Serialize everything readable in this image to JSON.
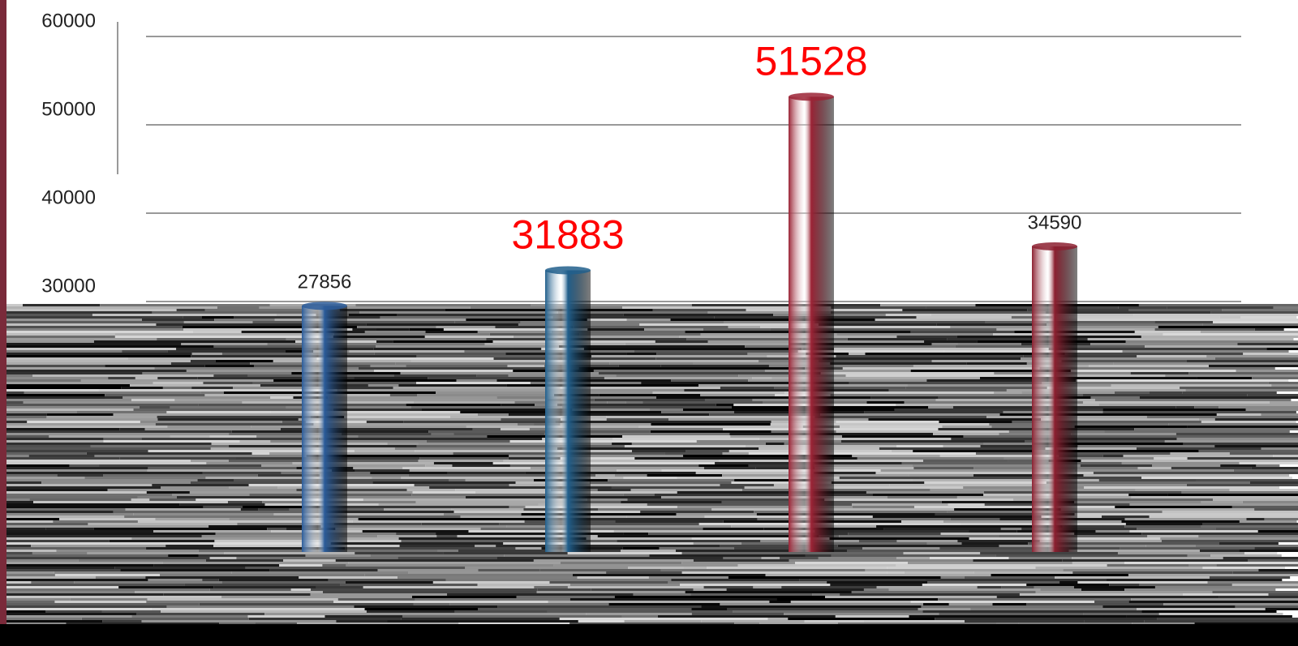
{
  "chart_data": {
    "type": "bar",
    "categories": [
      null,
      null,
      null,
      null
    ],
    "values": [
      27856,
      31883,
      51528,
      34590
    ],
    "colors": [
      "#2b5c9a",
      "#215f8c",
      "#9b2335",
      "#8c2030"
    ],
    "label_colors": [
      "#222222",
      "#ff0000",
      "#ff0000",
      "#222222"
    ],
    "ylim": [
      0,
      60000
    ],
    "yticks": [
      30000,
      40000,
      50000,
      60000
    ],
    "grid": true
  }
}
